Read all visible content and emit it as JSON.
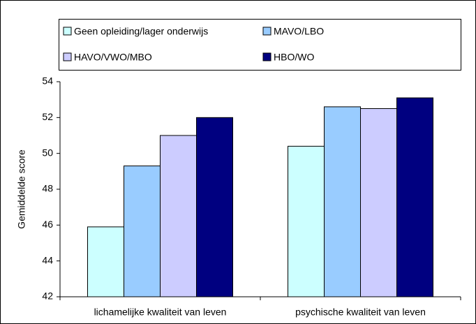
{
  "chart_data": {
    "type": "bar",
    "categories": [
      "lichamelijke kwaliteit van leven",
      "psychische kwaliteit van leven"
    ],
    "series": [
      {
        "name": "Geen opleiding/lager onderwijs",
        "color": "#ccffff",
        "values": [
          45.9,
          50.4
        ]
      },
      {
        "name": "MAVO/LBO",
        "color": "#99ccff",
        "values": [
          49.3,
          52.6
        ]
      },
      {
        "name": "HAVO/VWO/MBO",
        "color": "#ccccff",
        "values": [
          51.0,
          52.5
        ]
      },
      {
        "name": "HBO/WO",
        "color": "#000080",
        "values": [
          52.0,
          53.1
        ]
      }
    ],
    "y_label": "Gemiddelde score",
    "ylim": [
      42,
      54
    ],
    "yticks": [
      42,
      44,
      46,
      48,
      50,
      52,
      54
    ],
    "grid": false,
    "legend": "top"
  }
}
